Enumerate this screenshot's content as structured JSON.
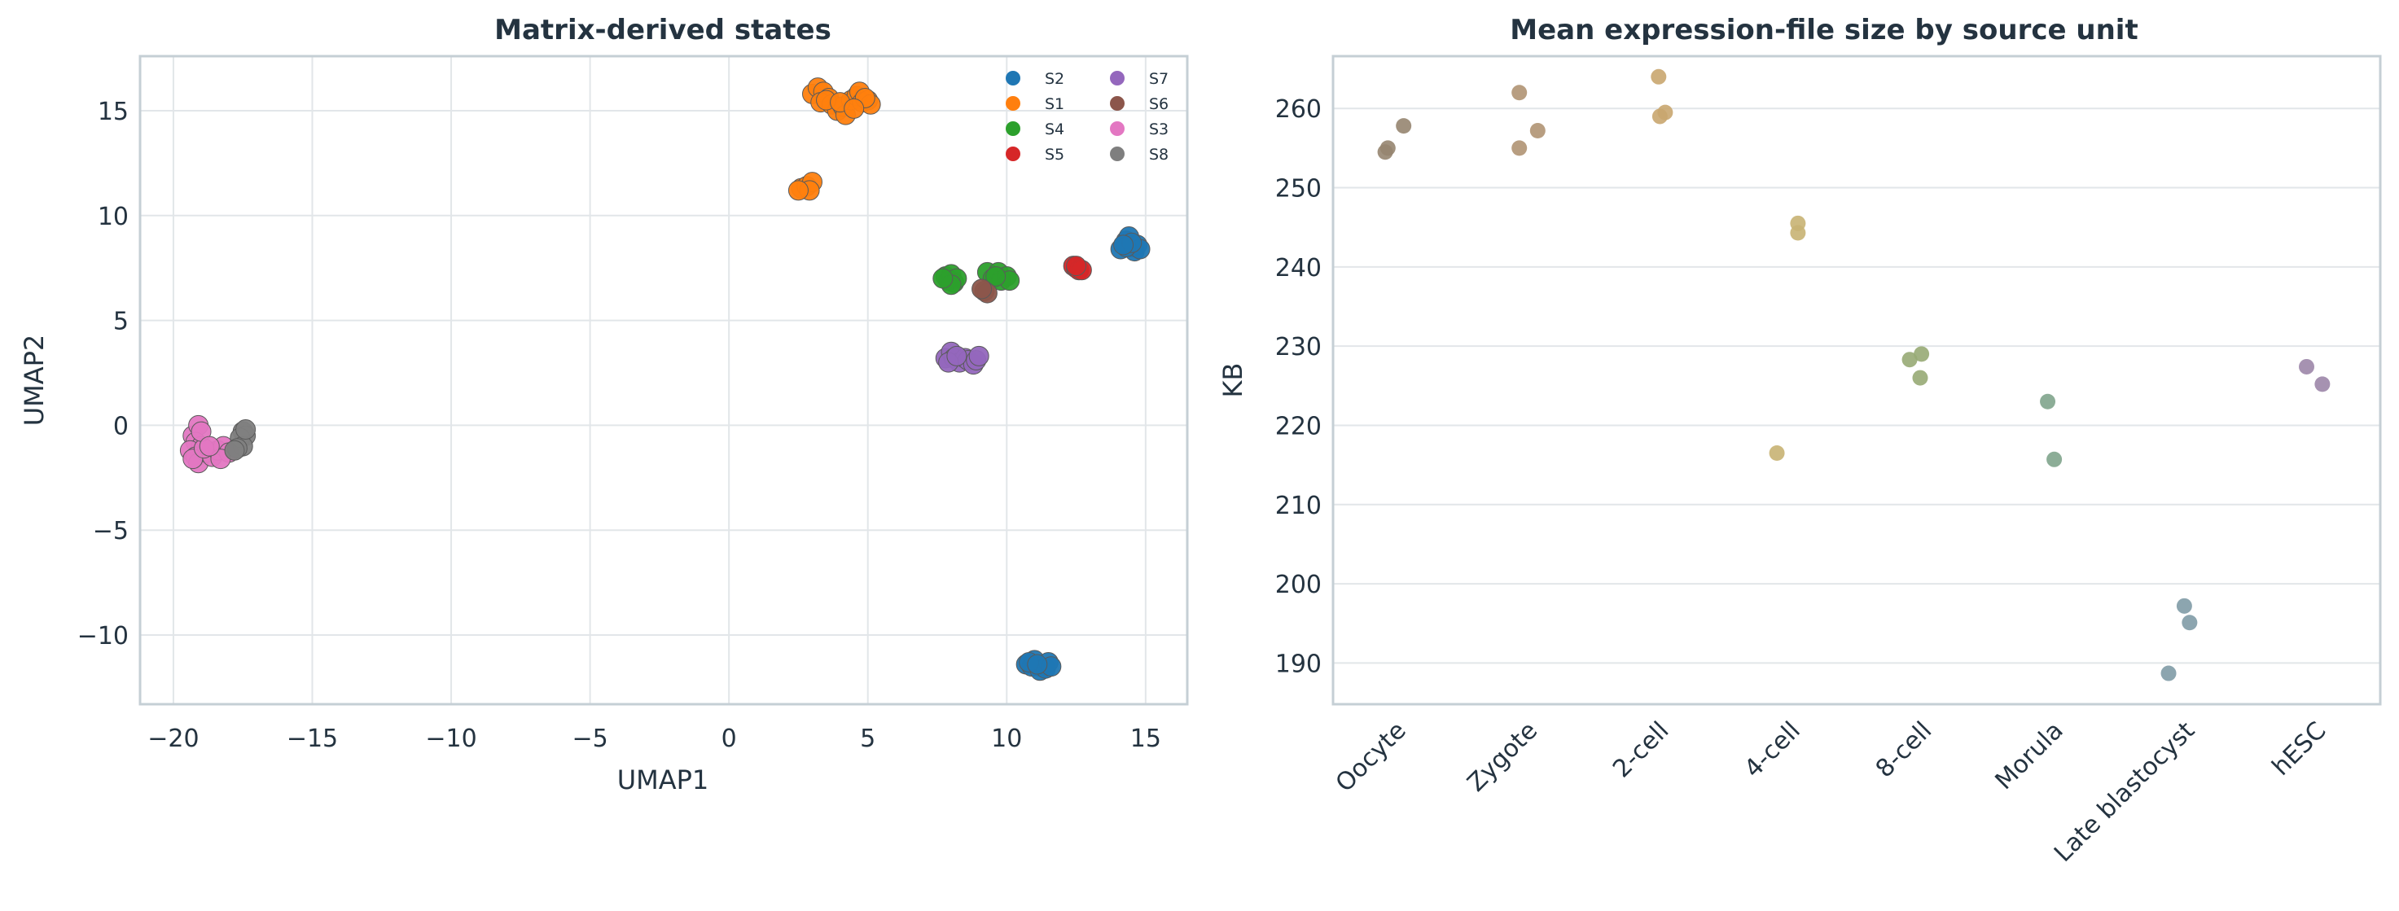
{
  "chart_data": [
    {
      "type": "scatter",
      "title": "Matrix-derived states",
      "xlabel": "UMAP1",
      "ylabel": "UMAP2",
      "xlim": [
        -21.2,
        16.5
      ],
      "ylim": [
        -13.3,
        17.6
      ],
      "xticks": [
        -20,
        -15,
        -10,
        -5,
        0,
        5,
        10,
        15
      ],
      "yticks": [
        -10,
        -5,
        0,
        5,
        10,
        15
      ],
      "grid": true,
      "legend": {
        "placement": "top-right",
        "columns": 2
      },
      "series": [
        {
          "name": "S2",
          "color": "#1f77b4",
          "points": [
            [
              10.7,
              -11.4
            ],
            [
              10.9,
              -11.5
            ],
            [
              11.0,
              -11.2
            ],
            [
              11.2,
              -11.5
            ],
            [
              11.2,
              -11.7
            ],
            [
              11.4,
              -11.6
            ],
            [
              11.5,
              -11.3
            ],
            [
              11.6,
              -11.5
            ],
            [
              10.8,
              -11.3
            ],
            [
              11.1,
              -11.4
            ],
            [
              14.1,
              8.4
            ],
            [
              14.3,
              8.8
            ],
            [
              14.4,
              9.0
            ],
            [
              14.5,
              8.5
            ],
            [
              14.6,
              8.3
            ],
            [
              14.7,
              8.6
            ],
            [
              14.8,
              8.4
            ],
            [
              14.3,
              8.5
            ],
            [
              14.5,
              8.7
            ],
            [
              14.2,
              8.6
            ]
          ]
        },
        {
          "name": "S1",
          "color": "#ff7f0e",
          "points": [
            [
              3.0,
              15.8
            ],
            [
              3.2,
              16.1
            ],
            [
              3.4,
              15.9
            ],
            [
              3.6,
              15.6
            ],
            [
              3.3,
              15.4
            ],
            [
              3.7,
              15.3
            ],
            [
              3.9,
              15.0
            ],
            [
              4.1,
              15.2
            ],
            [
              4.2,
              14.8
            ],
            [
              4.4,
              15.5
            ],
            [
              4.6,
              15.7
            ],
            [
              4.7,
              15.9
            ],
            [
              4.8,
              15.4
            ],
            [
              5.0,
              15.5
            ],
            [
              5.1,
              15.3
            ],
            [
              4.9,
              15.6
            ],
            [
              3.5,
              15.5
            ],
            [
              4.0,
              15.4
            ],
            [
              4.5,
              15.1
            ],
            [
              2.6,
              11.3
            ],
            [
              2.8,
              11.4
            ],
            [
              3.0,
              11.6
            ],
            [
              2.9,
              11.2
            ],
            [
              2.5,
              11.2
            ]
          ]
        },
        {
          "name": "S4",
          "color": "#2ca02c",
          "points": [
            [
              7.8,
              7.1
            ],
            [
              7.9,
              6.9
            ],
            [
              8.0,
              7.2
            ],
            [
              8.1,
              6.8
            ],
            [
              8.2,
              7.0
            ],
            [
              8.0,
              6.7
            ],
            [
              7.7,
              7.0
            ],
            [
              9.3,
              7.3
            ],
            [
              9.5,
              7.0
            ],
            [
              9.7,
              7.3
            ],
            [
              9.8,
              6.9
            ],
            [
              10.0,
              7.1
            ],
            [
              10.1,
              6.9
            ],
            [
              9.6,
              7.1
            ]
          ]
        },
        {
          "name": "S5",
          "color": "#d62728",
          "points": [
            [
              12.4,
              7.6
            ],
            [
              12.5,
              7.5
            ],
            [
              12.6,
              7.4
            ],
            [
              12.7,
              7.4
            ],
            [
              12.5,
              7.6
            ]
          ]
        },
        {
          "name": "S7",
          "color": "#9467bd",
          "points": [
            [
              7.8,
              3.2
            ],
            [
              8.0,
              3.5
            ],
            [
              8.1,
              3.2
            ],
            [
              8.3,
              3.0
            ],
            [
              8.5,
              3.2
            ],
            [
              8.6,
              3.1
            ],
            [
              8.8,
              2.9
            ],
            [
              8.9,
              3.1
            ],
            [
              9.0,
              3.3
            ],
            [
              7.9,
              3.0
            ],
            [
              8.2,
              3.3
            ]
          ]
        },
        {
          "name": "S6",
          "color": "#8c564b",
          "points": [
            [
              9.2,
              6.4
            ],
            [
              9.3,
              6.3
            ],
            [
              9.1,
              6.5
            ]
          ]
        },
        {
          "name": "S3",
          "color": "#e377c2",
          "points": [
            [
              -19.3,
              -0.5
            ],
            [
              -19.1,
              0.0
            ],
            [
              -19.2,
              -0.8
            ],
            [
              -19.0,
              -1.0
            ],
            [
              -19.4,
              -1.2
            ],
            [
              -19.2,
              -1.5
            ],
            [
              -19.1,
              -1.8
            ],
            [
              -18.8,
              -1.3
            ],
            [
              -18.6,
              -1.5
            ],
            [
              -18.4,
              -1.2
            ],
            [
              -18.2,
              -1.0
            ],
            [
              -18.0,
              -1.3
            ],
            [
              -18.3,
              -1.6
            ],
            [
              -19.3,
              -1.6
            ],
            [
              -18.9,
              -1.1
            ],
            [
              -19.0,
              -0.3
            ],
            [
              -18.7,
              -1.0
            ]
          ]
        },
        {
          "name": "S8",
          "color": "#7f7f7f",
          "points": [
            [
              -17.5,
              -0.3
            ],
            [
              -17.4,
              -0.5
            ],
            [
              -17.6,
              -0.6
            ],
            [
              -17.5,
              -1.0
            ],
            [
              -17.7,
              -1.1
            ],
            [
              -17.8,
              -1.2
            ],
            [
              -17.4,
              -0.2
            ]
          ]
        }
      ]
    },
    {
      "type": "scatter",
      "title": "Mean expression-file size by source unit",
      "xlabel": "",
      "ylabel": "KB",
      "categories": [
        "Oocyte",
        "Zygote",
        "2-cell",
        "4-cell",
        "8-cell",
        "Morula",
        "Late blastocyst",
        "hESC"
      ],
      "ylim": [
        184.8,
        266.6
      ],
      "yticks": [
        190,
        200,
        210,
        220,
        230,
        240,
        250,
        260
      ],
      "grid": true,
      "tick_rotation": 45,
      "points": [
        {
          "category": "Oocyte",
          "offset": -0.08,
          "value": 254.5,
          "color": "#968570"
        },
        {
          "category": "Oocyte",
          "offset": -0.06,
          "value": 255.0,
          "color": "#968570"
        },
        {
          "category": "Oocyte",
          "offset": 0.06,
          "value": 257.8,
          "color": "#968570"
        },
        {
          "category": "Zygote",
          "offset": -0.06,
          "value": 262.0,
          "color": "#b09373"
        },
        {
          "category": "Zygote",
          "offset": -0.06,
          "value": 255.0,
          "color": "#b09373"
        },
        {
          "category": "Zygote",
          "offset": 0.08,
          "value": 257.2,
          "color": "#b09373"
        },
        {
          "category": "2-cell",
          "offset": 0.0,
          "value": 264.0,
          "color": "#c9a66f"
        },
        {
          "category": "2-cell",
          "offset": 0.01,
          "value": 259.0,
          "color": "#c9a66f"
        },
        {
          "category": "2-cell",
          "offset": 0.05,
          "value": 259.5,
          "color": "#c9a66f"
        },
        {
          "category": "4-cell",
          "offset": -0.1,
          "value": 216.5,
          "color": "#c8b373"
        },
        {
          "category": "4-cell",
          "offset": 0.06,
          "value": 245.5,
          "color": "#c8b373"
        },
        {
          "category": "4-cell",
          "offset": 0.06,
          "value": 244.3,
          "color": "#c8b373"
        },
        {
          "category": "8-cell",
          "offset": -0.09,
          "value": 228.3,
          "color": "#97aa74"
        },
        {
          "category": "8-cell",
          "offset": 0.0,
          "value": 229.0,
          "color": "#97aa74"
        },
        {
          "category": "8-cell",
          "offset": -0.01,
          "value": 226.0,
          "color": "#97aa74"
        },
        {
          "category": "Morula",
          "offset": -0.04,
          "value": 223.0,
          "color": "#7fa48c"
        },
        {
          "category": "Morula",
          "offset": 0.01,
          "value": 215.7,
          "color": "#7fa48c"
        },
        {
          "category": "Late blastocyst",
          "offset": -0.12,
          "value": 188.7,
          "color": "#7f9ba6"
        },
        {
          "category": "Late blastocyst",
          "offset": 0.0,
          "value": 197.2,
          "color": "#7f9ba6"
        },
        {
          "category": "Late blastocyst",
          "offset": 0.04,
          "value": 195.1,
          "color": "#7f9ba6"
        },
        {
          "category": "hESC",
          "offset": -0.07,
          "value": 227.4,
          "color": "#9c86a8"
        },
        {
          "category": "hESC",
          "offset": 0.05,
          "value": 225.2,
          "color": "#9c86a8"
        }
      ]
    }
  ]
}
